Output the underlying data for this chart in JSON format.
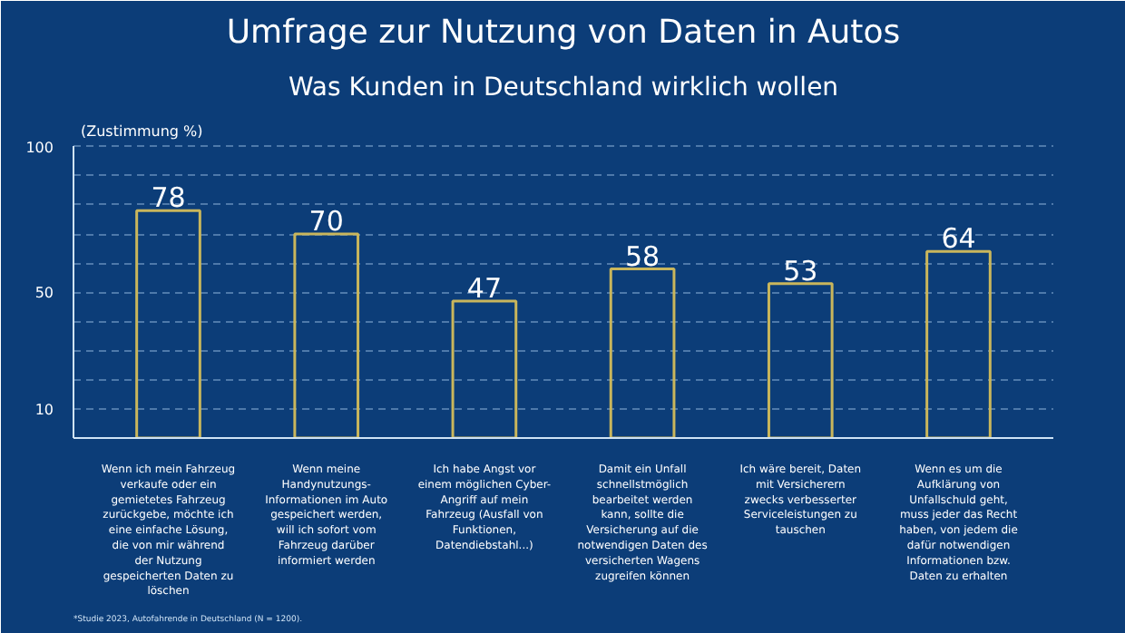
{
  "chart_data": {
    "type": "bar",
    "title": "Umfrage zur Nutzung von Daten in Autos",
    "subtitle": "Was Kunden in Deutschland wirklich wollen",
    "ylabel": "(Zustimmung %)",
    "categories": [
      "Wenn ich mein Fahrzeug verkaufe oder ein gemietetes Fahrzeug zurückgebe, möchte ich eine einfache Lösung, die von mir während der Nutzung gespeicherten Daten zu löschen",
      "Wenn meine Handynutzungs-Informationen im Auto gespeichert werden, will ich sofort vom Fahrzeug darüber informiert werden",
      "Ich habe Angst vor einem möglichen Cyber-Angriff auf mein Fahrzeug (Ausfall von Funktionen, Datendiebstahl...)",
      "Damit ein Unfall schnellstmöglich bearbeitet werden kann, sollte die Versicherung auf die notwendigen Daten des versicherten Wagens zugreifen können",
      "Ich wäre bereit, Daten mit Versicherern zwecks verbesserter Serviceleistungen zu tauschen",
      "Wenn es um die Aufklärung von Unfallschuld geht, muss jeder das Recht haben, von jedem die dafür notwendigen Informationen bzw. Daten zu erhalten"
    ],
    "values": [
      78,
      70,
      47,
      58,
      53,
      64
    ],
    "color": "#c9b65c",
    "data_labels": true,
    "ylim": [
      0,
      100
    ],
    "yticks": [
      10,
      {
        "value": 20,
        "label": null
      },
      {
        "value": 30,
        "label": null
      },
      {
        "value": 40,
        "label": null
      },
      50,
      {
        "value": 60,
        "label": null
      },
      {
        "value": 70,
        "label": null
      },
      {
        "value": 80,
        "label": null
      },
      {
        "value": 90,
        "label": null
      },
      100
    ],
    "grid": "y",
    "annotations": [
      "*Studie 2023, Autofahrende in Deutschland (N = 1200)."
    ]
  }
}
